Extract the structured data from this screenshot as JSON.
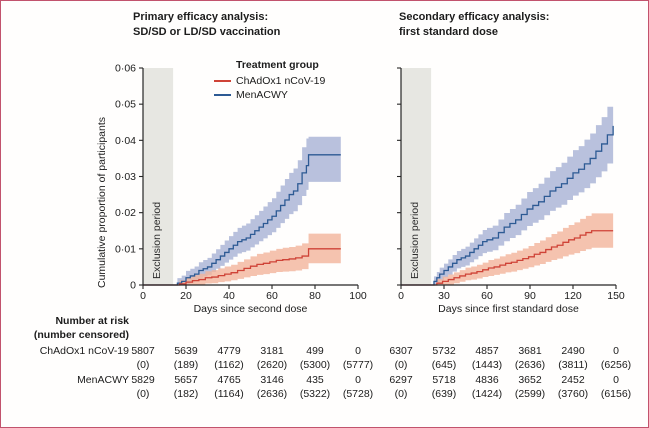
{
  "figure": {
    "border_color": "#c2536d",
    "background": "#fffefd",
    "exclusion_band_color": "#e7e7e2",
    "axis_color": "#262626"
  },
  "legend": {
    "title": "Treatment group",
    "entries": [
      {
        "label": "ChAdOx1 nCoV-19",
        "color": "#cf4337"
      },
      {
        "label": "MenACWY",
        "color": "#2d5a94"
      }
    ]
  },
  "chart_data": [
    {
      "type": "line",
      "title_line1": "Primary efficacy analysis:",
      "title_line2": "SD/SD or LD/SD vaccination",
      "xlabel": "Days since second dose",
      "ylabel": "Cumulative proportion of participants",
      "xlim": [
        0,
        100
      ],
      "ylim": [
        0,
        0.06
      ],
      "x_ticks": [
        0,
        20,
        40,
        60,
        80,
        100
      ],
      "y_ticks": [
        0,
        0.01,
        0.02,
        0.03,
        0.04,
        0.05,
        0.06
      ],
      "y_tick_labels": [
        "0",
        "0·01",
        "0·02",
        "0·03",
        "0·04",
        "0·05",
        "0·06"
      ],
      "show_y_tick_labels": true,
      "exclusion_period_days": [
        0,
        14
      ],
      "exclusion_label": "Exclusion period",
      "series": [
        {
          "name": "ChAdOx1 nCoV-19",
          "color": "#cf4337",
          "band_color": "#f2b49b",
          "x": [
            0,
            14,
            17,
            20,
            23,
            26,
            29,
            32,
            35,
            38,
            41,
            44,
            47,
            50,
            53,
            56,
            59,
            62,
            65,
            68,
            71,
            74,
            77,
            92
          ],
          "y": [
            0,
            0,
            0.0003,
            0.0008,
            0.0012,
            0.0015,
            0.002,
            0.0022,
            0.0026,
            0.003,
            0.0034,
            0.004,
            0.0046,
            0.0052,
            0.0057,
            0.006,
            0.0064,
            0.0068,
            0.007,
            0.0072,
            0.0075,
            0.008,
            0.01,
            0.01
          ],
          "ci_lower": [
            0,
            0,
            0,
            0,
            0,
            0.0001,
            0.0004,
            0.0005,
            0.0008,
            0.001,
            0.0013,
            0.0017,
            0.0021,
            0.0025,
            0.0028,
            0.003,
            0.0033,
            0.0036,
            0.0037,
            0.0038,
            0.004,
            0.0044,
            0.006,
            0.0058
          ],
          "ci_upper": [
            0,
            0,
            0.0013,
            0.0021,
            0.0027,
            0.0031,
            0.0038,
            0.0041,
            0.0046,
            0.0051,
            0.0056,
            0.0064,
            0.0071,
            0.0079,
            0.0086,
            0.009,
            0.0095,
            0.01,
            0.0103,
            0.0105,
            0.0109,
            0.0115,
            0.0142,
            0.0147
          ]
        },
        {
          "name": "MenACWY",
          "color": "#2d5a94",
          "band_color": "#a8b2d4",
          "x": [
            0,
            14,
            16,
            18,
            20,
            22,
            24,
            26,
            28,
            30,
            32,
            34,
            36,
            38,
            40,
            42,
            44,
            46,
            48,
            50,
            52,
            54,
            56,
            58,
            60,
            62,
            64,
            66,
            68,
            70,
            72,
            74,
            76,
            77,
            92
          ],
          "y": [
            0,
            0,
            0.0005,
            0.001,
            0.002,
            0.0025,
            0.003,
            0.004,
            0.0045,
            0.005,
            0.006,
            0.007,
            0.008,
            0.009,
            0.01,
            0.011,
            0.012,
            0.0125,
            0.013,
            0.014,
            0.015,
            0.016,
            0.017,
            0.018,
            0.019,
            0.0205,
            0.022,
            0.0235,
            0.025,
            0.026,
            0.028,
            0.031,
            0.033,
            0.036,
            0.036
          ],
          "ci_lower": [
            0,
            0,
            0,
            0,
            0.0003,
            0.0007,
            0.0011,
            0.002,
            0.0024,
            0.0028,
            0.0036,
            0.0045,
            0.0053,
            0.0062,
            0.007,
            0.0078,
            0.0087,
            0.0091,
            0.0095,
            0.0104,
            0.0112,
            0.0121,
            0.0129,
            0.0138,
            0.0146,
            0.0158,
            0.0171,
            0.0183,
            0.0196,
            0.0204,
            0.0221,
            0.0246,
            0.0263,
            0.0285,
            0.0265
          ],
          "ci_upper": [
            0,
            0,
            0.0019,
            0.0026,
            0.0039,
            0.0045,
            0.0051,
            0.0063,
            0.0069,
            0.0075,
            0.0087,
            0.0099,
            0.0111,
            0.0123,
            0.0135,
            0.0147,
            0.0158,
            0.0164,
            0.017,
            0.0182,
            0.0193,
            0.0205,
            0.0217,
            0.0229,
            0.024,
            0.0258,
            0.0275,
            0.0293,
            0.031,
            0.0322,
            0.0345,
            0.0381,
            0.0405,
            0.041,
            0.0445
          ]
        }
      ]
    },
    {
      "type": "line",
      "title_line1": "Secondary efficacy analysis:",
      "title_line2": "first standard dose",
      "xlabel": "Days since first standard dose",
      "ylabel": "",
      "xlim": [
        0,
        150
      ],
      "ylim": [
        0,
        0.06
      ],
      "x_ticks": [
        0,
        30,
        60,
        90,
        120,
        150
      ],
      "y_ticks": [
        0,
        0.01,
        0.02,
        0.03,
        0.04,
        0.05,
        0.06
      ],
      "y_tick_labels": [
        "0",
        "0·01",
        "0·02",
        "0·03",
        "0·04",
        "0·05",
        "0·06"
      ],
      "show_y_tick_labels": false,
      "exclusion_period_days": [
        0,
        21
      ],
      "exclusion_label": "Exclusion period",
      "series": [
        {
          "name": "ChAdOx1 nCoV-19",
          "color": "#cf4337",
          "band_color": "#f2b49b",
          "x": [
            0,
            21,
            25,
            29,
            33,
            37,
            41,
            45,
            49,
            53,
            57,
            61,
            65,
            69,
            73,
            77,
            81,
            85,
            89,
            93,
            97,
            101,
            105,
            109,
            113,
            117,
            121,
            125,
            129,
            133,
            148
          ],
          "y": [
            0,
            0,
            0.0005,
            0.001,
            0.0015,
            0.002,
            0.0025,
            0.003,
            0.0033,
            0.0037,
            0.0042,
            0.0047,
            0.005,
            0.0055,
            0.006,
            0.0063,
            0.0068,
            0.0073,
            0.0078,
            0.0085,
            0.009,
            0.0098,
            0.0105,
            0.011,
            0.0118,
            0.0125,
            0.013,
            0.0138,
            0.0145,
            0.015,
            0.015
          ],
          "ci_lower": [
            0,
            0,
            0,
            0,
            0.0001,
            0.0005,
            0.0009,
            0.0013,
            0.0015,
            0.0018,
            0.0022,
            0.0025,
            0.0028,
            0.0031,
            0.0035,
            0.0037,
            0.0041,
            0.0045,
            0.0049,
            0.0054,
            0.0058,
            0.0064,
            0.0069,
            0.0073,
            0.0079,
            0.0084,
            0.0088,
            0.0094,
            0.0099,
            0.0103,
            0.0103
          ],
          "ci_upper": [
            0,
            0,
            0.0016,
            0.0023,
            0.0029,
            0.0035,
            0.0041,
            0.0048,
            0.0051,
            0.0056,
            0.0062,
            0.0069,
            0.0073,
            0.0079,
            0.0085,
            0.0089,
            0.0095,
            0.0101,
            0.0108,
            0.0116,
            0.0123,
            0.0132,
            0.0141,
            0.0148,
            0.0158,
            0.0166,
            0.0173,
            0.0183,
            0.0191,
            0.0198,
            0.0198
          ]
        },
        {
          "name": "MenACWY",
          "color": "#2d5a94",
          "band_color": "#a8b2d4",
          "x": [
            0,
            21,
            23,
            25,
            27,
            30,
            33,
            36,
            39,
            42,
            45,
            48,
            51,
            54,
            57,
            60,
            64,
            68,
            72,
            76,
            80,
            84,
            88,
            92,
            96,
            100,
            104,
            108,
            112,
            116,
            120,
            124,
            128,
            132,
            136,
            140,
            144,
            148
          ],
          "y": [
            0,
            0,
            0.001,
            0.002,
            0.003,
            0.004,
            0.005,
            0.006,
            0.007,
            0.0075,
            0.008,
            0.009,
            0.01,
            0.011,
            0.012,
            0.0125,
            0.013,
            0.0145,
            0.016,
            0.017,
            0.018,
            0.0195,
            0.021,
            0.022,
            0.023,
            0.0245,
            0.026,
            0.027,
            0.028,
            0.0295,
            0.031,
            0.032,
            0.0335,
            0.035,
            0.037,
            0.039,
            0.0415,
            0.044
          ],
          "ci_lower": [
            0,
            0,
            0,
            0.0004,
            0.0012,
            0.0021,
            0.0029,
            0.0037,
            0.0046,
            0.005,
            0.0054,
            0.0063,
            0.0071,
            0.008,
            0.0088,
            0.0092,
            0.0096,
            0.0109,
            0.0121,
            0.013,
            0.0138,
            0.0151,
            0.0163,
            0.0172,
            0.018,
            0.0193,
            0.0205,
            0.0214,
            0.0222,
            0.0235,
            0.0247,
            0.0256,
            0.0268,
            0.0281,
            0.0298,
            0.0314,
            0.0336,
            0.0357
          ],
          "ci_upper": [
            0,
            0,
            0.0024,
            0.0036,
            0.0048,
            0.0059,
            0.0071,
            0.0083,
            0.0094,
            0.01,
            0.0106,
            0.0117,
            0.0129,
            0.014,
            0.0152,
            0.0158,
            0.0164,
            0.0181,
            0.0199,
            0.021,
            0.0222,
            0.0239,
            0.0257,
            0.0268,
            0.028,
            0.0297,
            0.0315,
            0.0326,
            0.0338,
            0.0355,
            0.0373,
            0.0384,
            0.0402,
            0.0419,
            0.0442,
            0.0464,
            0.0493,
            0.0521
          ]
        }
      ]
    }
  ],
  "risk_table": {
    "header_line1": "Number at risk",
    "header_line2": "(number censored)",
    "rows": [
      {
        "label": "ChAdOx1 nCoV-19",
        "left_at_risk": [
          "5807",
          "5639",
          "4779",
          "3181",
          "499",
          "0"
        ],
        "left_censored": [
          "(0)",
          "(189)",
          "(1162)",
          "(2620)",
          "(5300)",
          "(5777)"
        ],
        "right_at_risk": [
          "6307",
          "5732",
          "4857",
          "3681",
          "2490",
          "0"
        ],
        "right_censored": [
          "(0)",
          "(645)",
          "(1443)",
          "(2636)",
          "(3811)",
          "(6256)"
        ]
      },
      {
        "label": "MenACWY",
        "left_at_risk": [
          "5829",
          "5657",
          "4765",
          "3146",
          "435",
          "0"
        ],
        "left_censored": [
          "(0)",
          "(182)",
          "(1164)",
          "(2636)",
          "(5322)",
          "(5728)"
        ],
        "right_at_risk": [
          "6297",
          "5718",
          "4836",
          "3652",
          "2452",
          "0"
        ],
        "right_censored": [
          "(0)",
          "(639)",
          "(1424)",
          "(2599)",
          "(3760)",
          "(6156)"
        ]
      }
    ]
  }
}
